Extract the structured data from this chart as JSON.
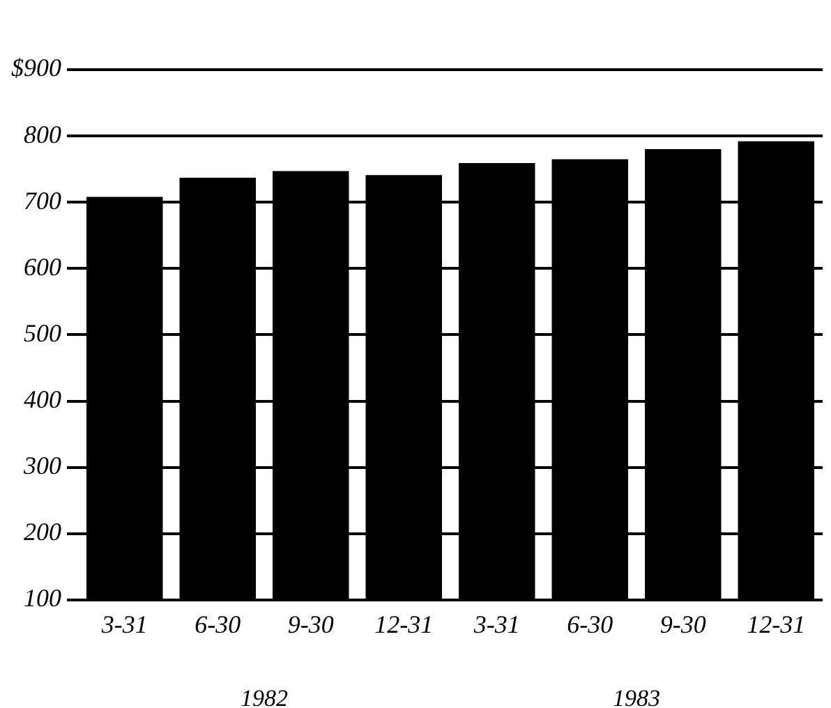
{
  "chart_data": {
    "type": "bar",
    "categories": [
      "3-31",
      "6-30",
      "9-30",
      "12-31",
      "3-31",
      "6-30",
      "9-30",
      "12-31"
    ],
    "values": [
      708,
      737,
      747,
      741,
      759,
      765,
      780,
      792
    ],
    "color": "#000000",
    "ylim": [
      100,
      900
    ],
    "yticks": [
      100,
      200,
      300,
      400,
      500,
      600,
      700,
      800,
      {
        "value": 900,
        "label": "$900"
      }
    ],
    "grid": "y",
    "annotations": [
      "1982",
      "1983"
    ]
  }
}
